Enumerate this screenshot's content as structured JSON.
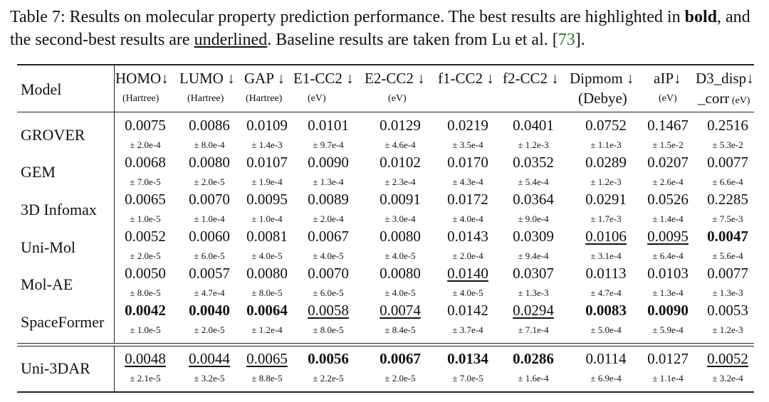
{
  "caption": {
    "prefix": "Table 7: Results on molecular property prediction performance. The best results are highlighted in ",
    "bold_word": "bold",
    "middle": ", and the second-best results are ",
    "underlined_word": "underlined",
    "suffix": ". Baseline results are taken from Lu et al. [",
    "citation": "73",
    "end": "]."
  },
  "table": {
    "model_header": "Model",
    "columns": [
      {
        "label": "HOMO↓",
        "unit": "(Hartree)"
      },
      {
        "label": "LUMO ↓",
        "unit": "(Hartree)"
      },
      {
        "label": "GAP ↓",
        "unit": "(Hartree)"
      },
      {
        "label": "E1-CC2 ↓",
        "unit": "(eV)"
      },
      {
        "label": "E2-CC2 ↓",
        "unit": "(eV)"
      },
      {
        "label": "f1-CC2 ↓",
        "unit": ""
      },
      {
        "label": "f2-CC2 ↓",
        "unit": ""
      },
      {
        "label": "Dipmom ↓",
        "unit": "(Debye)"
      },
      {
        "label": "aIP↓",
        "unit": "(eV)"
      },
      {
        "label": "D3_disp↓",
        "unit_a": "_corr",
        "unit_b": "(eV)"
      }
    ],
    "rows": [
      {
        "model": "GROVER",
        "values": [
          "0.0075",
          "0.0086",
          "0.0109",
          "0.0101",
          "0.0129",
          "0.0219",
          "0.0401",
          "0.0752",
          "0.1467",
          "0.2516"
        ],
        "errors": [
          "± 2.0e-4",
          "± 8.0e-4",
          "± 1.4e-3",
          "± 9.7e-4",
          "± 4.6e-4",
          "± 3.5e-4",
          "± 1.2e-3",
          "± 1.1e-3",
          "± 1.5e-2",
          "± 5.3e-2"
        ],
        "styles": [
          "",
          "",
          "",
          "",
          "",
          "",
          "",
          "",
          "",
          ""
        ]
      },
      {
        "model": "GEM",
        "values": [
          "0.0068",
          "0.0080",
          "0.0107",
          "0.0090",
          "0.0102",
          "0.0170",
          "0.0352",
          "0.0289",
          "0.0207",
          "0.0077"
        ],
        "errors": [
          "± 7.0e-5",
          "± 2.0e-5",
          "± 1.9e-4",
          "± 1.3e-4",
          "± 2.3e-4",
          "± 4.3e-4",
          "± 5.4e-4",
          "± 1.2e-3",
          "± 2.6e-4",
          "± 6.6e-4"
        ],
        "styles": [
          "",
          "",
          "",
          "",
          "",
          "",
          "",
          "",
          "",
          ""
        ]
      },
      {
        "model": "3D Infomax",
        "values": [
          "0.0065",
          "0.0070",
          "0.0095",
          "0.0089",
          "0.0091",
          "0.0172",
          "0.0364",
          "0.0291",
          "0.0526",
          "0.2285"
        ],
        "errors": [
          "± 1.0e-5",
          "± 1.0e-4",
          "± 1.0e-4",
          "± 2.0e-4",
          "± 3.0e-4",
          "± 4.0e-4",
          "± 9.0e-4",
          "± 1.7e-3",
          "± 1.4e-4",
          "± 7.5e-3"
        ],
        "styles": [
          "",
          "",
          "",
          "",
          "",
          "",
          "",
          "",
          "",
          ""
        ]
      },
      {
        "model": "Uni-Mol",
        "values": [
          "0.0052",
          "0.0060",
          "0.0081",
          "0.0067",
          "0.0080",
          "0.0143",
          "0.0309",
          "0.0106",
          "0.0095",
          "0.0047"
        ],
        "errors": [
          "± 2.0e-5",
          "± 6.0e-5",
          "± 4.0e-5",
          "± 4.0e-5",
          "± 4.0e-5",
          "± 2.0e-4",
          "± 9.4e-4",
          "± 3.1e-4",
          "± 6.4e-4",
          "± 5.6e-4"
        ],
        "styles": [
          "",
          "",
          "",
          "",
          "",
          "",
          "",
          "ul",
          "ul",
          "bold"
        ]
      },
      {
        "model": "Mol-AE",
        "values": [
          "0.0050",
          "0.0057",
          "0.0080",
          "0.0070",
          "0.0080",
          "0.0140",
          "0.0307",
          "0.0113",
          "0.0103",
          "0.0077"
        ],
        "errors": [
          "± 8.0e-5",
          "± 4.7e-4",
          "± 8.0e-5",
          "± 6.0e-5",
          "± 4.0e-5",
          "± 4.0e-5",
          "± 1.3e-3",
          "± 4.7e-4",
          "± 1.3e-4",
          "± 1.3e-3"
        ],
        "styles": [
          "",
          "",
          "",
          "",
          "",
          "ul",
          "",
          "",
          "",
          ""
        ]
      },
      {
        "model": "SpaceFormer",
        "values": [
          "0.0042",
          "0.0040",
          "0.0064",
          "0.0058",
          "0.0074",
          "0.0142",
          "0.0294",
          "0.0083",
          "0.0090",
          "0.0053"
        ],
        "errors": [
          "± 1.0e-5",
          "± 2.0e-5",
          "± 1.2e-4",
          "± 8.0e-5",
          "± 8.4e-5",
          "± 3.7e-4",
          "± 7.1e-4",
          "± 5.0e-4",
          "± 5.9e-4",
          "± 1.2e-3"
        ],
        "styles": [
          "bold",
          "bold",
          "bold",
          "ul",
          "ul",
          "",
          "ul",
          "bold",
          "bold",
          ""
        ]
      },
      {
        "model": "Uni-3DAR",
        "values": [
          "0.0048",
          "0.0044",
          "0.0065",
          "0.0056",
          "0.0067",
          "0.0134",
          "0.0286",
          "0.0114",
          "0.0127",
          "0.0052"
        ],
        "errors": [
          "± 2.1e-5",
          "± 3.2e-5",
          "± 8.8e-5",
          "± 2.2e-5",
          "± 2.0e-5",
          "± 7.0e-5",
          "± 1.6e-4",
          "± 6.9e-4",
          "± 1.1e-4",
          "± 3.2e-4"
        ],
        "styles": [
          "ul",
          "ul",
          "ul",
          "bold",
          "bold",
          "bold",
          "bold",
          "",
          "",
          "ul"
        ]
      }
    ]
  }
}
